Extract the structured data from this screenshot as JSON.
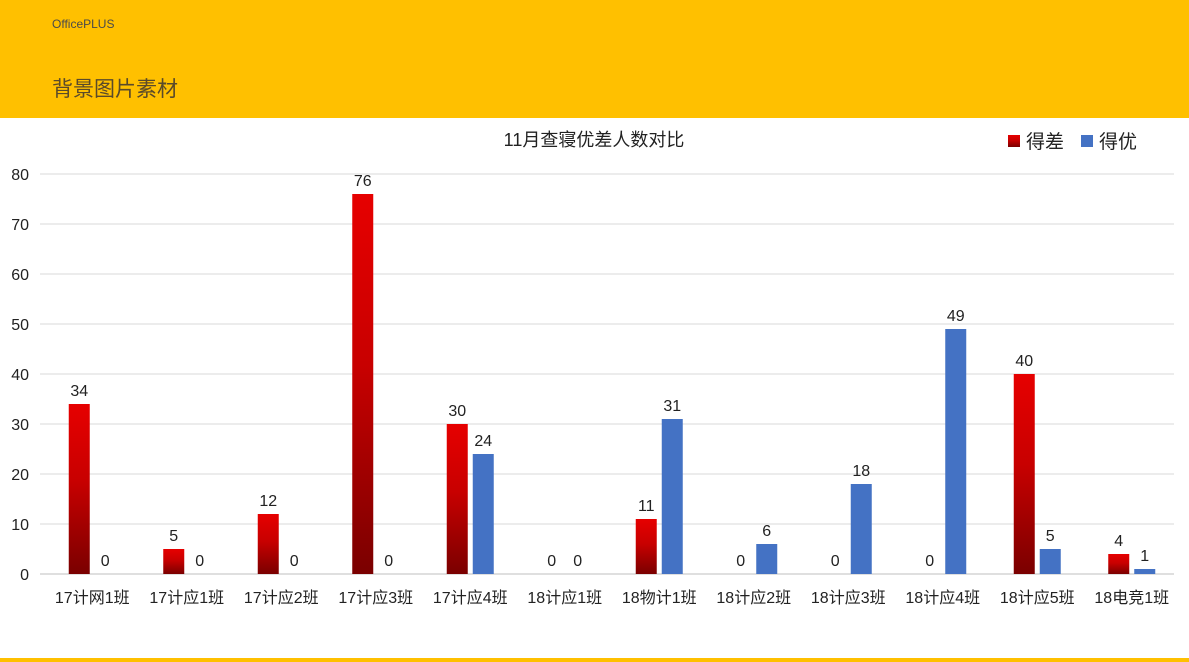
{
  "header": {
    "brand": "OfficePLUS",
    "title": "背景图片素材"
  },
  "colors": {
    "header_bg": "#ffc000",
    "series_bad_top": "#e60000",
    "series_bad_bottom": "#7a0000",
    "series_good": "#4472c4",
    "grid": "#d9d9d9"
  },
  "chart_data": {
    "type": "bar",
    "title": "11月查寝优差人数对比",
    "categories": [
      "17计网1班",
      "17计应1班",
      "17计应2班",
      "17计应3班",
      "17计应4班",
      "18计应1班",
      "18物计1班",
      "18计应2班",
      "18计应3班",
      "18计应4班",
      "18计应5班",
      "18电竞1班"
    ],
    "series": [
      {
        "name": "得差",
        "values": [
          34,
          5,
          12,
          76,
          30,
          0,
          11,
          0,
          0,
          0,
          40,
          4
        ]
      },
      {
        "name": "得优",
        "values": [
          0,
          0,
          0,
          0,
          24,
          0,
          31,
          6,
          18,
          49,
          5,
          1
        ]
      }
    ],
    "ylim": [
      0,
      80
    ],
    "yticks": [
      0,
      10,
      20,
      30,
      40,
      50,
      60,
      70,
      80
    ],
    "grid": true,
    "legend_position": "top-right",
    "data_labels": true
  }
}
